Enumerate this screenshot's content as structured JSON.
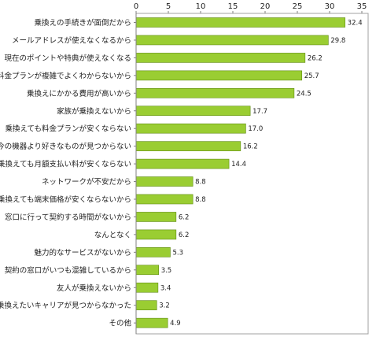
{
  "chart_data": {
    "type": "bar",
    "orientation": "horizontal",
    "categories": [
      "乗換えの手続きが面倒だから",
      "メールアドレスが使えなくなるから",
      "現在のポイントや特典が使えなくなる",
      "料金プランが複雑でよくわからないから",
      "乗換えにかかる費用が高いから",
      "家族が乗換えないから",
      "乗換えても料金プランが安くならない",
      "今の機器より好きなものが見つからない",
      "乗換えても月額支払い料が安くならない",
      "ネットワークが不安だから",
      "乗換えても端末価格が安くならないから",
      "窓口に行って契約する時間がないから",
      "なんとなく",
      "魅力的なサービスがないから",
      "契約の窓口がいつも混雑しているから",
      "友人が乗換えないから",
      "乗換えたいキャリアが見つからなかった",
      "その他"
    ],
    "values": [
      32.4,
      29.8,
      26.2,
      25.7,
      24.5,
      17.7,
      17.0,
      16.2,
      14.4,
      8.8,
      8.8,
      6.2,
      6.2,
      5.3,
      3.5,
      3.4,
      3.2,
      4.9
    ],
    "value_labels": [
      "32.4",
      "29.8",
      "26.2",
      "25.7",
      "24.5",
      "17.7",
      "17.0",
      "16.2",
      "14.4",
      "8.8",
      "8.8",
      "6.2",
      "6.2",
      "5.3",
      "3.5",
      "3.4",
      "3.2",
      "4.9"
    ],
    "xlim": [
      0,
      35
    ],
    "x_ticks": [
      "0",
      "5",
      "10",
      "15",
      "20",
      "25",
      "30",
      "35"
    ],
    "x_axis_position": "top",
    "grid": false,
    "legend": "none",
    "title": "",
    "xlabel": "",
    "ylabel": "",
    "colors": {
      "bar_fill": "#9acd32",
      "bar_stroke": "#5f8a10",
      "axis": "#808080",
      "frame": "#a0a0a0",
      "text": "#222222"
    }
  }
}
